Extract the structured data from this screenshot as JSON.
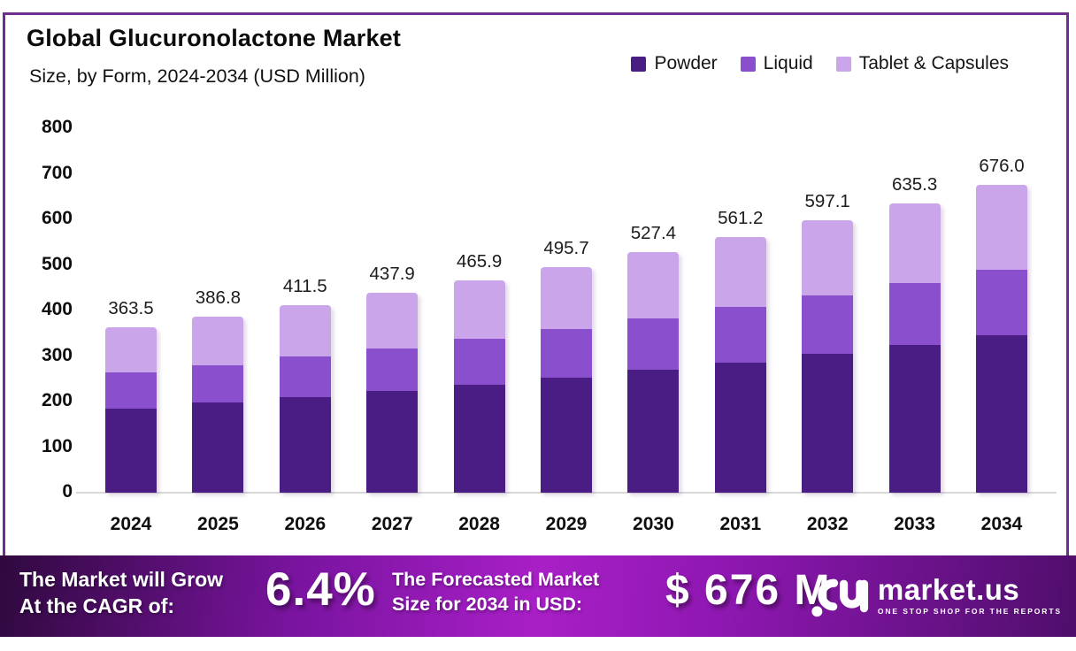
{
  "header": {
    "title": "Global Glucuronolactone Market",
    "subtitle": "Size, by Form, 2024-2034 (USD Million)"
  },
  "legend": [
    {
      "label": "Powder",
      "color": "#4a1d85"
    },
    {
      "label": "Liquid",
      "color": "#8a4fcc"
    },
    {
      "label": "Tablet & Capsules",
      "color": "#caa5e9"
    }
  ],
  "chart_data": {
    "type": "bar",
    "stacked": true,
    "title": "Global Glucuronolactone Market Size, by Form, 2024-2034 (USD Million)",
    "xlabel": "",
    "ylabel": "",
    "ylim": [
      0,
      800
    ],
    "yticks": [
      0,
      100,
      200,
      300,
      400,
      500,
      600,
      700,
      800
    ],
    "grid": false,
    "legend_position": "top-right",
    "categories": [
      "2024",
      "2025",
      "2026",
      "2027",
      "2028",
      "2029",
      "2030",
      "2031",
      "2032",
      "2033",
      "2034"
    ],
    "totals": [
      363.5,
      386.8,
      411.5,
      437.9,
      465.9,
      495.7,
      527.4,
      561.2,
      597.1,
      635.3,
      676.0
    ],
    "series": [
      {
        "name": "Powder",
        "color": "#4a1d85",
        "values": [
          185.4,
          197.3,
          209.9,
          223.3,
          237.6,
          252.8,
          269.0,
          286.2,
          304.5,
          324.0,
          344.8
        ]
      },
      {
        "name": "Liquid",
        "color": "#8a4fcc",
        "values": [
          78.2,
          83.2,
          88.5,
          94.1,
          100.2,
          106.6,
          113.4,
          120.7,
          128.4,
          136.6,
          145.3
        ]
      },
      {
        "name": "Tablet & Capsules",
        "color": "#caa5e9",
        "values": [
          99.9,
          106.3,
          113.1,
          120.5,
          128.1,
          136.3,
          145.0,
          154.3,
          164.2,
          174.7,
          185.9
        ]
      }
    ]
  },
  "footer": {
    "grow_line1": "The Market will Grow",
    "grow_line2": "At the CAGR of:",
    "cagr": "6.4%",
    "forecast_line1": "The Forecasted Market",
    "forecast_line2": "Size for 2034 in USD:",
    "forecast_value": "$ 676 M",
    "brand": "market.us",
    "brand_tagline": "ONE STOP SHOP FOR THE REPORTS"
  },
  "colors": {
    "panel_border": "#6f2d8f",
    "baseline": "#d9d9d9",
    "banner_dark": "#30093f",
    "banner_bright": "#a81fc6",
    "powder": "#4a1d85",
    "liquid": "#8a4fcc",
    "tablet_capsules": "#caa5e9"
  }
}
